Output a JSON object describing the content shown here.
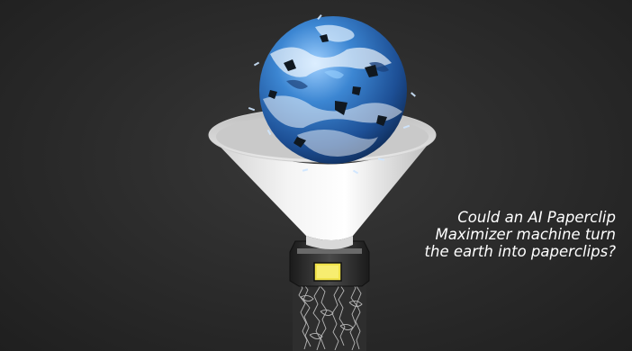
{
  "scene": {
    "subject": "earth-globe-in-funnel",
    "colors": {
      "background": "#2b2b2b",
      "ocean": "#2f6fb8",
      "funnel": "#e6e6e6",
      "label": "#f0e24a",
      "caption": "#ffffff"
    }
  },
  "caption": {
    "line1": "Could an AI Paperclip",
    "line2": "Maximizer machine turn",
    "line3": "the earth into paperclips?"
  }
}
